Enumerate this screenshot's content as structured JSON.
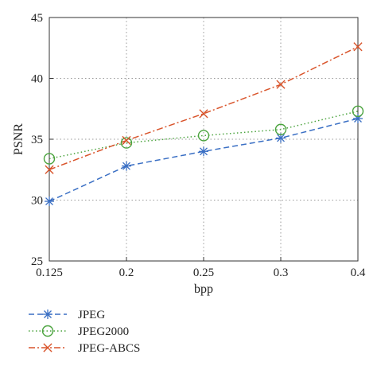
{
  "chart_data": {
    "type": "line",
    "xlabel": "bpp",
    "ylabel": "PSNR",
    "categories": [
      "0.125",
      "0.2",
      "0.25",
      "0.3",
      "0.4"
    ],
    "ylim": [
      25,
      45
    ],
    "yticks": [
      "25",
      "30",
      "35",
      "40",
      "45"
    ],
    "grid": true,
    "legend_position": "bottom-left, below the plot",
    "series": [
      {
        "name": "JPEG",
        "color": "#3a6fc4",
        "marker": "asterisk",
        "line": "dashed",
        "values": [
          29.9,
          32.8,
          34.0,
          35.1,
          36.7
        ]
      },
      {
        "name": "JPEG2000",
        "color": "#4aa33d",
        "marker": "circle",
        "line": "dotted",
        "values": [
          33.4,
          34.7,
          35.3,
          35.8,
          37.3
        ]
      },
      {
        "name": "JPEG-ABCS",
        "color": "#d9542b",
        "marker": "cross",
        "line": "dashdot",
        "values": [
          32.5,
          34.9,
          37.1,
          39.5,
          42.6
        ]
      }
    ]
  }
}
